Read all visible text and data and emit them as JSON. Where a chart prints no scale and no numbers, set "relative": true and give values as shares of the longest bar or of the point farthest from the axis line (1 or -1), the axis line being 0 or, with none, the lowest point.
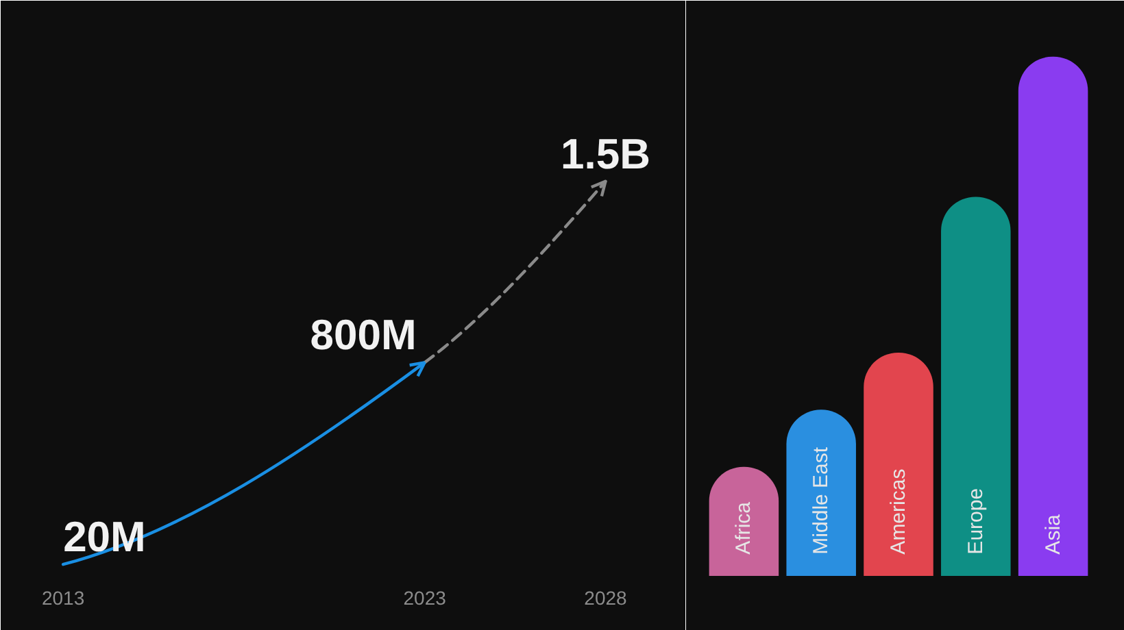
{
  "chart_data": [
    {
      "type": "line",
      "series": [
        {
          "x": [
            2013,
            2023
          ],
          "values": [
            20000000,
            800000000
          ],
          "color": "#1a8fe3",
          "line_style": "solid",
          "value_labels": [
            "20M",
            "800M"
          ]
        },
        {
          "x": [
            2023,
            2028
          ],
          "values": [
            800000000,
            1500000000
          ],
          "color": "#8a8a8a",
          "line_style": "dashed",
          "value_labels": [
            null,
            "1.5B"
          ]
        }
      ],
      "xlim": [
        2011.5,
        2030
      ],
      "xticks": [
        2013,
        2023,
        2028
      ],
      "tick_labels": "x"
    },
    {
      "type": "bar",
      "categories": [
        "Africa",
        "Middle East",
        "Americas",
        "Europe",
        "Asia"
      ],
      "values": [
        0.21,
        0.32,
        0.43,
        0.73,
        1
      ],
      "colors": [
        "#c8649a",
        "#2a8fe0",
        "#e2454e",
        "#0e8f85",
        "#8a3cf0"
      ],
      "relative": true
    }
  ]
}
